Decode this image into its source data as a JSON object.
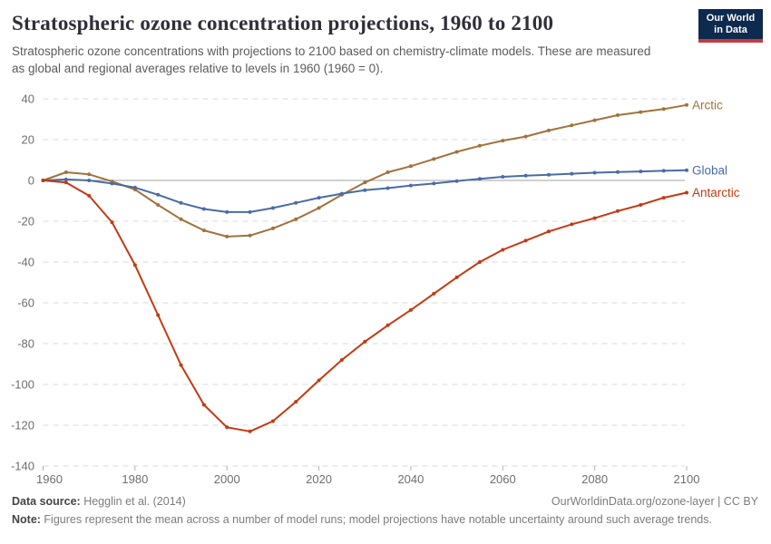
{
  "header": {
    "title": "Stratospheric ozone concentration projections, 1960 to 2100",
    "subtitle": "Stratospheric ozone concentrations with projections to 2100 based on chemistry-climate models. These are measured as global and regional averages relative to levels in 1960 (1960 = 0).",
    "logo": {
      "line1": "Our World",
      "line2": "in Data",
      "bg_color": "#0e2a4e",
      "bar_color": "#c53a3e"
    }
  },
  "chart_data": {
    "type": "line",
    "title": "Stratospheric ozone concentration projections, 1960 to 2100",
    "xlabel": "",
    "ylabel": "",
    "xlim": [
      1960,
      2100
    ],
    "ylim": [
      -140,
      40
    ],
    "xticks": [
      1960,
      1980,
      2000,
      2020,
      2040,
      2060,
      2080,
      2100
    ],
    "yticks": [
      40,
      20,
      0,
      -20,
      -40,
      -60,
      -80,
      -100,
      -120,
      -140
    ],
    "grid": "horizontal-dashed, solid zero line",
    "legend_position": "line-end-labels-right",
    "x": [
      1960,
      1965,
      1970,
      1975,
      1980,
      1985,
      1990,
      1995,
      2000,
      2005,
      2010,
      2015,
      2020,
      2025,
      2030,
      2035,
      2040,
      2045,
      2050,
      2055,
      2060,
      2065,
      2070,
      2075,
      2080,
      2085,
      2090,
      2095,
      2100
    ],
    "series": [
      {
        "name": "Arctic",
        "color": "#a0733a",
        "values": [
          0,
          4,
          3,
          -0.5,
          -4.5,
          -12,
          -19,
          -24.5,
          -27.5,
          -27,
          -23.5,
          -19,
          -13.5,
          -7,
          -1,
          4,
          7,
          10.5,
          14,
          17,
          19.5,
          21.5,
          24.5,
          27,
          29.5,
          32,
          33.5,
          35,
          37
        ]
      },
      {
        "name": "Global",
        "color": "#4a6ba5",
        "values": [
          0,
          0.5,
          0,
          -1.5,
          -3.5,
          -7,
          -11,
          -14,
          -15.5,
          -15.5,
          -13.5,
          -11,
          -8.5,
          -6.5,
          -4.8,
          -3.8,
          -2.5,
          -1.5,
          -0.3,
          0.8,
          1.8,
          2.3,
          2.8,
          3.3,
          3.8,
          4.1,
          4.4,
          4.7,
          5
        ]
      },
      {
        "name": "Antarctic",
        "color": "#c23a12",
        "values": [
          0,
          -1,
          -7.5,
          -20.5,
          -41.5,
          -66,
          -90.5,
          -110,
          -121,
          -123,
          -118,
          -108.5,
          -98,
          -88,
          -79,
          -71,
          -63.5,
          -55.5,
          -47.5,
          -40,
          -34,
          -29.5,
          -25,
          -21.5,
          -18.5,
          -15,
          -12,
          -8.5,
          -6
        ]
      }
    ],
    "axis_colors": {
      "gridline": "#dadada",
      "zero_line": "#a0a0a0",
      "tick_label": "#6e6e6e",
      "tick_mark": "#b3b3b3"
    }
  },
  "footer": {
    "source_label": "Data source:",
    "source_value": " Hegglin et al. (2014)",
    "attribution": "OurWorldinData.org/ozone-layer | CC BY",
    "note_label": "Note:",
    "note_value": " Figures represent the mean across a number of model runs; model projections have notable uncertainty around such average trends."
  }
}
